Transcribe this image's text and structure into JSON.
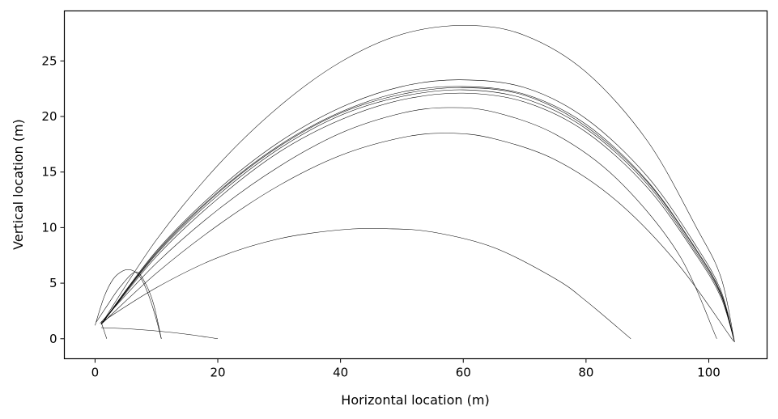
{
  "chart_data": {
    "type": "line",
    "title": "",
    "xlabel": "Horizontal location (m)",
    "ylabel": "Vertical location (m)",
    "xlim": [
      -5,
      109.5
    ],
    "ylim": [
      -1.8,
      29.5
    ],
    "xticks": [
      0,
      20,
      40,
      60,
      80,
      100
    ],
    "yticks": [
      0,
      5,
      10,
      15,
      20,
      25
    ],
    "grid": false,
    "legend": "none",
    "line_color": "#000000",
    "series": [
      {
        "x": [
          1.0,
          10,
          20,
          30,
          40,
          50,
          60.5,
          70,
          80,
          90,
          98,
          102,
          104.2
        ],
        "y": [
          1.3,
          8.9,
          15.6,
          20.9,
          24.9,
          27.4,
          28.2,
          27.3,
          24.0,
          17.8,
          10.0,
          5.5,
          -0.3
        ]
      },
      {
        "x": [
          1.0,
          10,
          20,
          30,
          40,
          50,
          59.5,
          70,
          80,
          90,
          98,
          102,
          104.2
        ],
        "y": [
          1.3,
          7.9,
          13.4,
          17.7,
          20.8,
          22.7,
          23.3,
          22.6,
          19.8,
          14.6,
          8.3,
          4.3,
          -0.3
        ]
      },
      {
        "x": [
          1.0,
          10,
          20,
          30,
          40,
          50,
          59.8,
          70,
          80,
          90,
          98,
          102,
          104.2
        ],
        "y": [
          1.3,
          7.8,
          13.2,
          17.4,
          20.4,
          22.2,
          22.7,
          22.0,
          19.3,
          14.2,
          8.0,
          4.1,
          -0.3
        ]
      },
      {
        "x": [
          1.0,
          10,
          20,
          30,
          40,
          50,
          59.8,
          70,
          80,
          90,
          98,
          102,
          104.2
        ],
        "y": [
          1.3,
          7.7,
          13.1,
          17.3,
          20.3,
          22.0,
          22.6,
          21.9,
          19.1,
          14.1,
          7.9,
          4.0,
          -0.3
        ]
      },
      {
        "x": [
          1.0,
          10,
          20,
          30,
          40,
          50,
          60,
          70,
          80,
          90,
          98,
          102,
          104.2
        ],
        "y": [
          1.3,
          7.6,
          12.9,
          17.1,
          20.1,
          21.8,
          22.4,
          21.6,
          18.9,
          13.9,
          7.7,
          3.9,
          -0.3
        ]
      },
      {
        "x": [
          1.0,
          10,
          20,
          30,
          40,
          50,
          60,
          70,
          80,
          90,
          98,
          102,
          104.2
        ],
        "y": [
          1.3,
          7.4,
          12.6,
          16.8,
          19.7,
          21.5,
          22.1,
          21.3,
          18.6,
          13.6,
          7.5,
          3.7,
          -0.3
        ]
      },
      {
        "x": [
          1.0,
          10,
          20,
          30,
          40,
          50,
          57.5,
          65,
          75,
          85,
          95,
          101.3
        ],
        "y": [
          1.5,
          6.8,
          11.6,
          15.5,
          18.5,
          20.3,
          20.8,
          20.4,
          18.4,
          14.4,
          7.7,
          0.0
        ]
      },
      {
        "x": [
          1.0,
          10,
          20,
          30,
          40,
          50,
          57.5,
          65,
          75,
          85,
          95,
          104.0
        ],
        "y": [
          1.3,
          5.9,
          10.2,
          13.8,
          16.5,
          18.1,
          18.5,
          18.0,
          16.1,
          12.4,
          6.7,
          -0.2
        ]
      },
      {
        "x": [
          0.8,
          10,
          20,
          30,
          40,
          47.5,
          55,
          65,
          75,
          80,
          87.3
        ],
        "y": [
          1.4,
          4.6,
          7.3,
          9.0,
          9.8,
          9.9,
          9.6,
          8.2,
          5.4,
          3.4,
          0.0
        ]
      },
      {
        "x": [
          0.0,
          1.5,
          3.0,
          4.5,
          5.8,
          7.0,
          8.0,
          9.0,
          10.0,
          10.8
        ],
        "y": [
          1.2,
          3.8,
          5.4,
          6.1,
          6.2,
          5.8,
          4.9,
          3.5,
          1.7,
          0.0
        ]
      },
      {
        "x": [
          0.2,
          2.0,
          4.0,
          6.5,
          8.0,
          9.5,
          10.8
        ],
        "y": [
          1.5,
          3.0,
          4.6,
          6.0,
          5.2,
          3.2,
          0.0
        ]
      },
      {
        "x": [
          1.0,
          5,
          10,
          15,
          20
        ],
        "y": [
          1.0,
          0.9,
          0.7,
          0.4,
          0.0
        ]
      },
      {
        "x": [
          1.0,
          1.3,
          1.6,
          1.9
        ],
        "y": [
          1.5,
          1.0,
          0.5,
          0.0
        ]
      }
    ]
  }
}
